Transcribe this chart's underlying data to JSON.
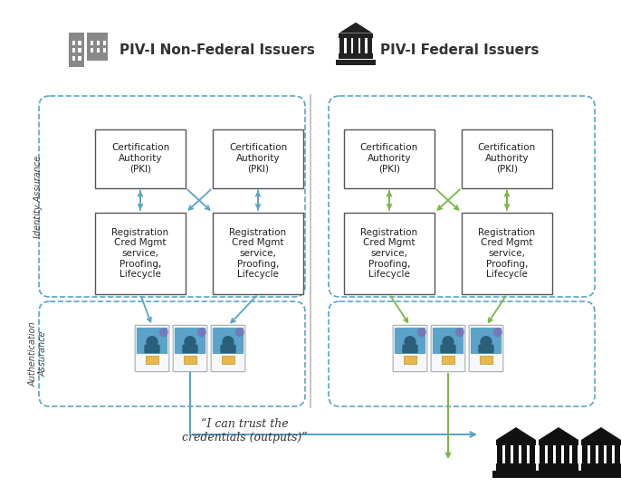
{
  "bg_color": "#ffffff",
  "fig_width": 6.86,
  "fig_height": 5.48,
  "non_federal_label": "PIV-I Non-Federal Issuers",
  "federal_label": "PIV-I Federal Issuers",
  "box_top_text": "Certification\nAuthority\n(PKI)",
  "box_bottom_text": "Registration\nCred Mgmt\nservice,\nProofing,\nLifecycle",
  "identity_assurance_label": "Identity Assurance",
  "auth_assurance_label": "Authentication\nAssurance",
  "trust_text": "“I can trust the\ncredentials (outputs)”",
  "arrow_color_blue": "#5BA3C9",
  "arrow_color_green": "#7AB648",
  "box_fill": "#ffffff",
  "box_edge": "#555555"
}
